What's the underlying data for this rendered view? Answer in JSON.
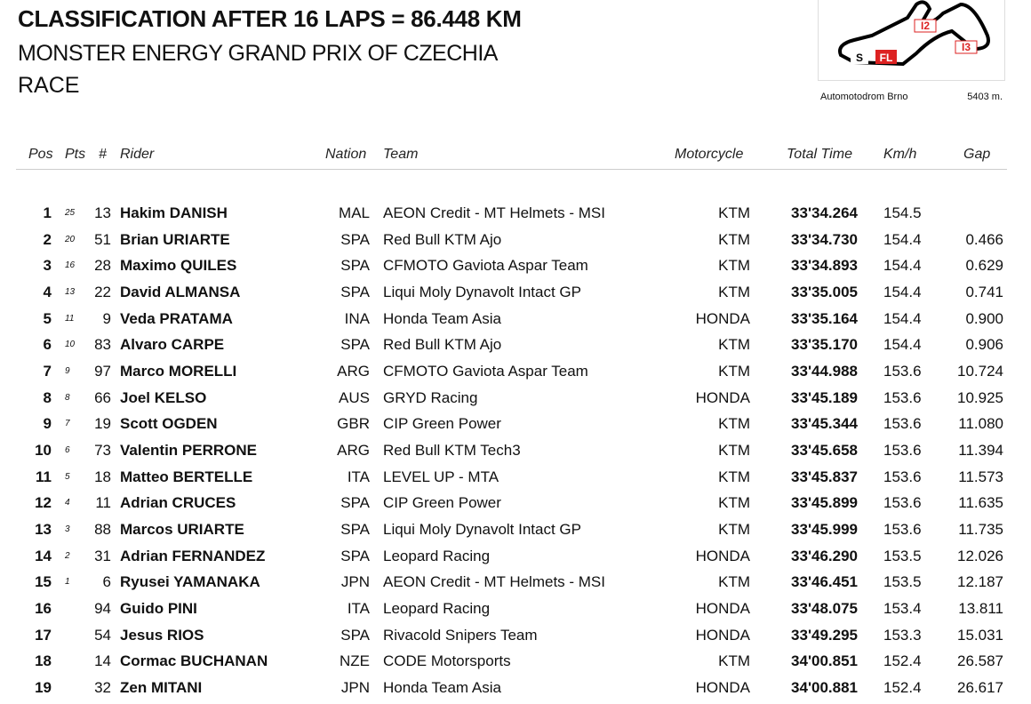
{
  "header": {
    "title": "CLASSIFICATION AFTER 16 LAPS = 86.448 KM",
    "subtitle": "MONSTER ENERGY GRAND PRIX OF CZECHIA",
    "session": "RACE"
  },
  "track": {
    "name": "Automotodrom Brno",
    "length": "5403 m.",
    "markers": [
      "I2",
      "I3",
      "S",
      "FL"
    ]
  },
  "table": {
    "columns": [
      "Pos",
      "Pts",
      "#",
      "Rider",
      "Nation",
      "Team",
      "Motorcycle",
      "Total Time",
      "Km/h",
      "Gap"
    ],
    "rows": [
      [
        "1",
        "25",
        "13",
        "Hakim DANISH",
        "MAL",
        "AEON Credit - MT Helmets - MSI",
        "KTM",
        "33'34.264",
        "154.5",
        null
      ],
      [
        "2",
        "20",
        "51",
        "Brian URIARTE",
        "SPA",
        "Red Bull KTM Ajo",
        "KTM",
        "33'34.730",
        "154.4",
        "0.466"
      ],
      [
        "3",
        "16",
        "28",
        "Maximo QUILES",
        "SPA",
        "CFMOTO Gaviota Aspar Team",
        "KTM",
        "33'34.893",
        "154.4",
        "0.629"
      ],
      [
        "4",
        "13",
        "22",
        "David ALMANSA",
        "SPA",
        "Liqui Moly Dynavolt Intact GP",
        "KTM",
        "33'35.005",
        "154.4",
        "0.741"
      ],
      [
        "5",
        "11",
        "9",
        "Veda PRATAMA",
        "INA",
        "Honda Team Asia",
        "HONDA",
        "33'35.164",
        "154.4",
        "0.900"
      ],
      [
        "6",
        "10",
        "83",
        "Alvaro CARPE",
        "SPA",
        "Red Bull KTM Ajo",
        "KTM",
        "33'35.170",
        "154.4",
        "0.906"
      ],
      [
        "7",
        "9",
        "97",
        "Marco MORELLI",
        "ARG",
        "CFMOTO Gaviota Aspar Team",
        "KTM",
        "33'44.988",
        "153.6",
        "10.724"
      ],
      [
        "8",
        "8",
        "66",
        "Joel KELSO",
        "AUS",
        "GRYD Racing",
        "HONDA",
        "33'45.189",
        "153.6",
        "10.925"
      ],
      [
        "9",
        "7",
        "19",
        "Scott OGDEN",
        "GBR",
        "CIP Green Power",
        "KTM",
        "33'45.344",
        "153.6",
        "11.080"
      ],
      [
        "10",
        "6",
        "73",
        "Valentin PERRONE",
        "ARG",
        "Red Bull KTM Tech3",
        "KTM",
        "33'45.658",
        "153.6",
        "11.394"
      ],
      [
        "11",
        "5",
        "18",
        "Matteo BERTELLE",
        "ITA",
        "LEVEL UP - MTA",
        "KTM",
        "33'45.837",
        "153.6",
        "11.573"
      ],
      [
        "12",
        "4",
        "11",
        "Adrian CRUCES",
        "SPA",
        "CIP Green Power",
        "KTM",
        "33'45.899",
        "153.6",
        "11.635"
      ],
      [
        "13",
        "3",
        "88",
        "Marcos URIARTE",
        "SPA",
        "Liqui Moly Dynavolt Intact GP",
        "KTM",
        "33'45.999",
        "153.6",
        "11.735"
      ],
      [
        "14",
        "2",
        "31",
        "Adrian FERNANDEZ",
        "SPA",
        "Leopard Racing",
        "HONDA",
        "33'46.290",
        "153.5",
        "12.026"
      ],
      [
        "15",
        "1",
        "6",
        "Ryusei YAMANAKA",
        "JPN",
        "AEON Credit - MT Helmets - MSI",
        "KTM",
        "33'46.451",
        "153.5",
        "12.187"
      ],
      [
        "16",
        null,
        "94",
        "Guido PINI",
        "ITA",
        "Leopard Racing",
        "HONDA",
        "33'48.075",
        "153.4",
        "13.811"
      ],
      [
        "17",
        null,
        "54",
        "Jesus RIOS",
        "SPA",
        "Rivacold Snipers Team",
        "HONDA",
        "33'49.295",
        "153.3",
        "15.031"
      ],
      [
        "18",
        null,
        "14",
        "Cormac BUCHANAN",
        "NZE",
        "CODE Motorsports",
        "KTM",
        "34'00.851",
        "152.4",
        "26.587"
      ],
      [
        "19",
        null,
        "32",
        "Zen MITANI",
        "JPN",
        "Honda Team Asia",
        "HONDA",
        "34'00.881",
        "152.4",
        "26.617"
      ]
    ]
  }
}
